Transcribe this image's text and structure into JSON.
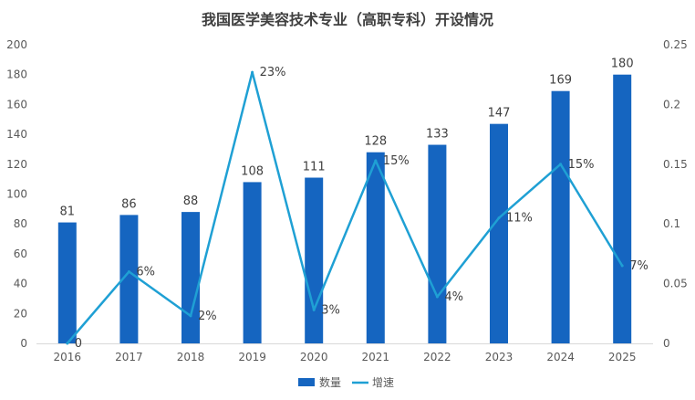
{
  "chart_data": {
    "type": "bar",
    "title": "我国医学美容技术专业（高职专科）开设情况",
    "categories": [
      "2016",
      "2017",
      "2018",
      "2019",
      "2020",
      "2021",
      "2022",
      "2023",
      "2024",
      "2025"
    ],
    "series": [
      {
        "name": "数量",
        "type": "bar",
        "axis": "left",
        "values": [
          81,
          86,
          88,
          108,
          111,
          128,
          133,
          147,
          169,
          180
        ],
        "labels": [
          "81",
          "86",
          "88",
          "108",
          "111",
          "128",
          "133",
          "147",
          "169",
          "180"
        ]
      },
      {
        "name": "增速",
        "type": "line",
        "axis": "right",
        "values": [
          0,
          0.06,
          0.023,
          0.227,
          0.028,
          0.153,
          0.039,
          0.105,
          0.15,
          0.065
        ],
        "labels": [
          "0",
          "6%",
          "2%",
          "23%",
          "3%",
          "15%",
          "4%",
          "11%",
          "15%",
          "7%"
        ]
      }
    ],
    "y_left": {
      "min": 0,
      "max": 200,
      "ticks": [
        "0",
        "20",
        "40",
        "60",
        "80",
        "100",
        "120",
        "140",
        "160",
        "180",
        "200"
      ]
    },
    "y_right": {
      "min": 0,
      "max": 0.25,
      "ticks": [
        "0",
        "0.05",
        "0.1",
        "0.15",
        "0.2",
        "0.25"
      ]
    },
    "legend_position": "bottom",
    "grid": false,
    "colors": {
      "bar": "#1565C0",
      "line": "#1FA0D4",
      "text": "#404040",
      "axis": "#595959"
    }
  }
}
